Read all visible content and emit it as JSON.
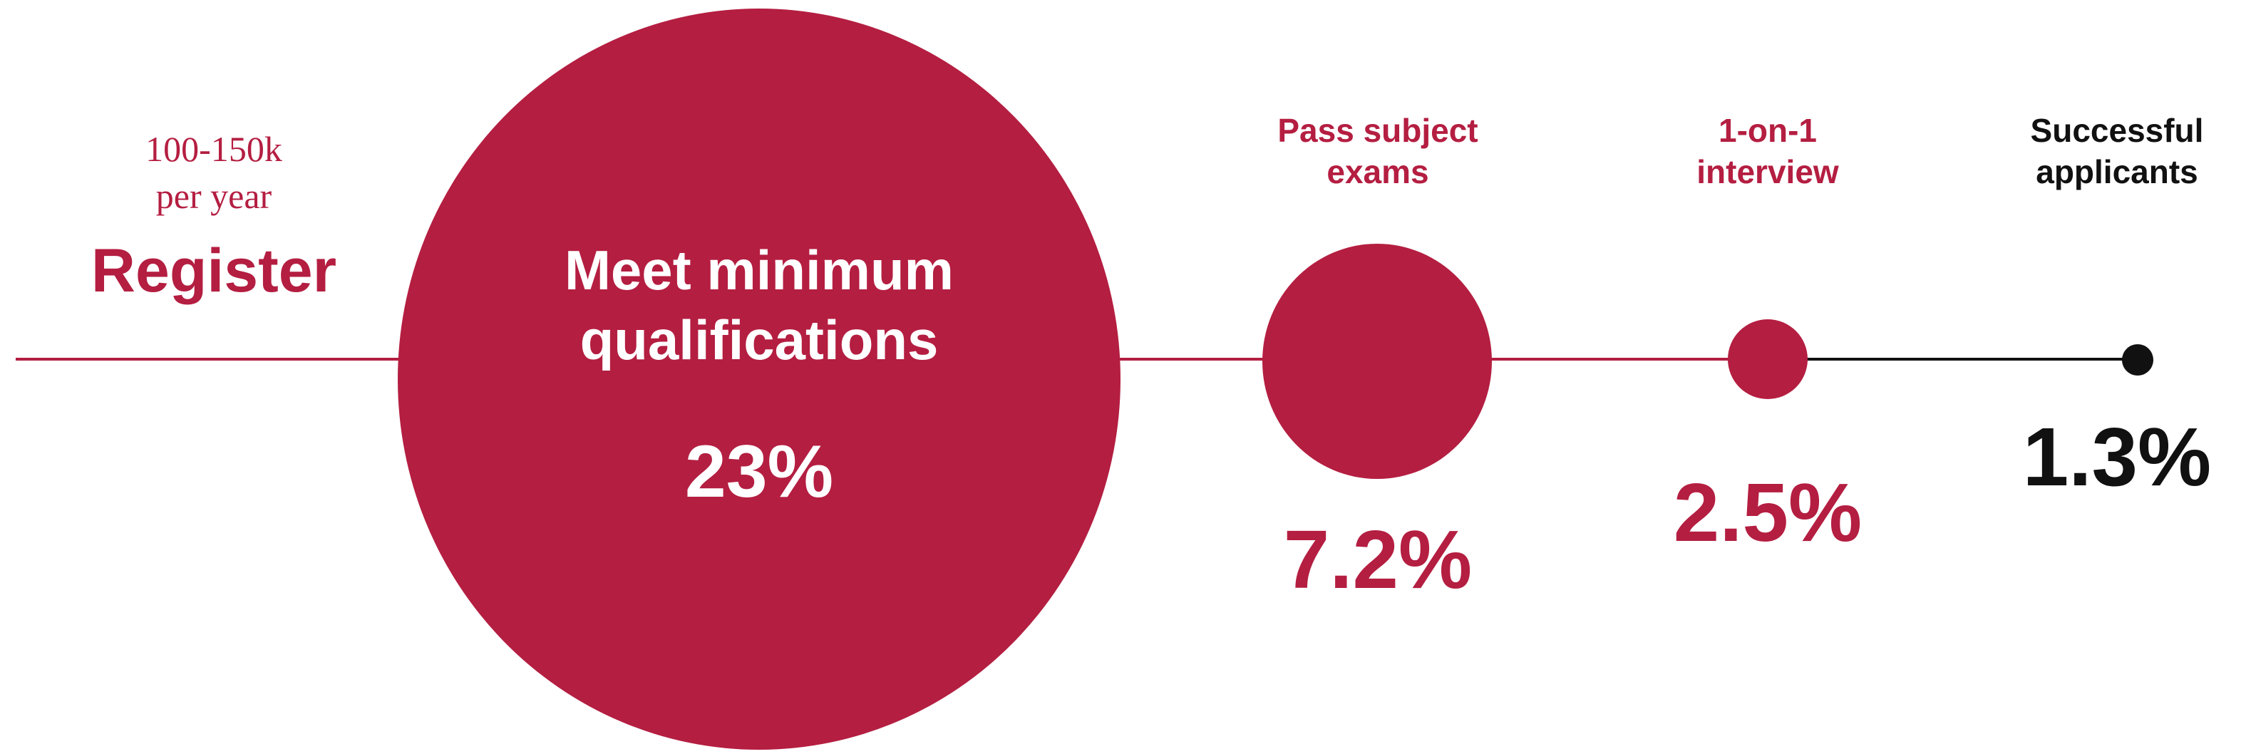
{
  "colors": {
    "accent": "#b41e41",
    "final": "#111111",
    "background": "#ffffff"
  },
  "register": {
    "count_line1": "100-150k",
    "count_line2": "per year",
    "title": "Register"
  },
  "steps": [
    {
      "label_line1": "Meet minimum",
      "label_line2": "qualifications",
      "percent": "23%"
    },
    {
      "label_line1": "Pass subject",
      "label_line2": "exams",
      "percent": "7.2%"
    },
    {
      "label_line1": "1-on-1",
      "label_line2": "interview",
      "percent": "2.5%"
    },
    {
      "label_line1": "Successful",
      "label_line2": "applicants",
      "percent": "1.3%"
    }
  ]
}
